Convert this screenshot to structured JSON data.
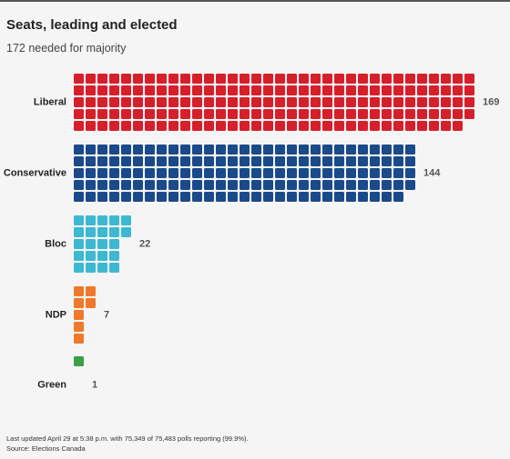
{
  "header": {
    "title": "Seats, leading and elected",
    "subtitle": "172 needed for majority"
  },
  "chart_data": {
    "type": "waffle",
    "title": "Seats, leading and elected",
    "subtitle": "172 needed for majority",
    "categories": [
      "Liberal",
      "Conservative",
      "Bloc",
      "NDP",
      "Green"
    ],
    "values": [
      169,
      144,
      22,
      7,
      1
    ],
    "colors": [
      "#d71f2b",
      "#1b4a8a",
      "#3db8d1",
      "#f0782a",
      "#3b9f43"
    ],
    "rows_per_party": 5,
    "majority": 172
  },
  "footer": {
    "updated": "Last updated April 29 at 5:38 p.m. with 75,349 of 75,483 polls reporting (99.9%).",
    "source": "Source: Elections Canada"
  }
}
